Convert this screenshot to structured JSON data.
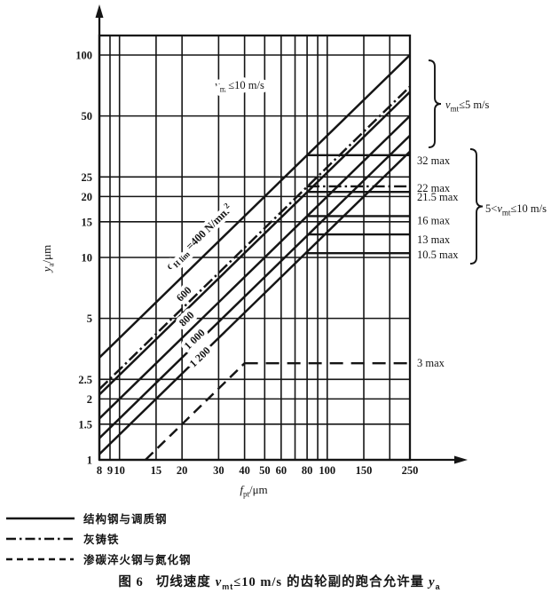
{
  "figure": {
    "caption": {
      "fig_no": "图 6",
      "before": "切线速度 ",
      "var": "v",
      "var_sub": "mt",
      "cond": "≤10 m/s",
      "after": " 的齿轮副的跑合允许量 ",
      "y_var": "y",
      "y_sub": "a"
    }
  },
  "legend": {
    "items": [
      {
        "name": "structural-and-quenched-tempered-steel",
        "style": "solid",
        "label": "结构钢与调质钢"
      },
      {
        "name": "grey-cast-iron",
        "style": "dashdot",
        "label": "灰铸铁"
      },
      {
        "name": "carburized-hardened-and-nitrided-steel",
        "style": "dashed",
        "label": "渗碳淬火钢与氮化钢"
      }
    ]
  },
  "chart_data": {
    "type": "line",
    "title": "切线速度 vmt≤10 m/s 的齿轮副的跑合允许量 ya",
    "x_scale": "log",
    "y_scale": "log",
    "xlim": [
      8,
      250
    ],
    "ylim": [
      1,
      125
    ],
    "xlabel_parts": [
      {
        "t": "f",
        "i": true
      },
      {
        "t": "pt",
        "sub": true
      },
      {
        "t": "/μm"
      }
    ],
    "ylabel_parts": [
      {
        "t": "y",
        "i": true
      },
      {
        "t": "a",
        "sub": true
      },
      {
        "t": "/μm"
      }
    ],
    "x_gridlines": [
      8,
      9,
      10,
      15,
      20,
      30,
      40,
      50,
      60,
      70,
      80,
      90,
      100,
      150,
      200,
      250
    ],
    "x_tick_labels": [
      "8",
      "9",
      "10",
      "15",
      "20",
      "30",
      "40",
      "50",
      "60",
      "80",
      "100",
      "150",
      "250"
    ],
    "x_tick_values": [
      8,
      9,
      10,
      15,
      20,
      30,
      40,
      50,
      60,
      80,
      100,
      150,
      250
    ],
    "y_gridlines": [
      1,
      1.5,
      2,
      2.5,
      5,
      10,
      15,
      20,
      25,
      50,
      100
    ],
    "y_tick_labels": [
      "1",
      "1.5",
      "2",
      "2.5",
      "5",
      "10",
      "15",
      "20",
      "25",
      "50",
      "100"
    ],
    "y_tick_values": [
      1,
      1.5,
      2,
      2.5,
      5,
      10,
      15,
      20,
      25,
      50,
      100
    ],
    "ink": "#151515",
    "series": [
      {
        "name": "sigma-hlim-400",
        "style": "solid",
        "k": 0.4,
        "x_from": 8,
        "x_to": 250,
        "y_nudge": 0
      },
      {
        "name": "grey-cast-iron",
        "style": "dashdot",
        "k": 0.275,
        "x_from": 8,
        "x_to": 250,
        "y_nudge": -1.5
      },
      {
        "name": "sigma-hlim-600",
        "style": "solid",
        "k": 0.266667,
        "x_from": 8,
        "x_to": 250,
        "y_nudge": 1.5
      },
      {
        "name": "sigma-hlim-800",
        "style": "solid",
        "k": 0.2,
        "x_from": 8,
        "x_to": 250,
        "y_nudge": 0
      },
      {
        "name": "sigma-hlim-1000",
        "style": "solid",
        "k": 0.16,
        "x_from": 8,
        "x_to": 250,
        "y_nudge": 0
      },
      {
        "name": "sigma-hlim-1200",
        "style": "solid",
        "k": 0.133333,
        "x_from": 8,
        "x_to": 250,
        "y_nudge": 0
      },
      {
        "name": "carburized-nitrided",
        "style": "dashed",
        "k": 0.075,
        "x_from": 13.333,
        "x_to": 40,
        "y_nudge": 0
      }
    ],
    "plateaus": [
      {
        "name": "cap-32",
        "y": 32,
        "x_from": 80,
        "style": "solid",
        "label": "32 max",
        "label_dy": 6
      },
      {
        "name": "cap-22",
        "y": 22,
        "x_from": 80,
        "style": "dashdot",
        "label": "22 max",
        "label_dy": 0,
        "y_nudge": -2
      },
      {
        "name": "cap-21.5",
        "y": 21.5,
        "x_from": 80.6,
        "style": "solid",
        "label": "21.5 max",
        "label_dy": 8,
        "y_nudge": 2
      },
      {
        "name": "cap-16",
        "y": 16,
        "x_from": 80,
        "style": "solid",
        "label": "16 max",
        "label_dy": 5
      },
      {
        "name": "cap-13",
        "y": 13,
        "x_from": 81.3,
        "style": "solid",
        "label": "13 max",
        "label_dy": 6
      },
      {
        "name": "cap-10.5",
        "y": 10.5,
        "x_from": 78.8,
        "style": "solid",
        "label": "10.5 max",
        "label_dy": 2
      },
      {
        "name": "cap-3",
        "y": 3,
        "x_from": 40,
        "style": "dashed",
        "label": "3 max",
        "label_dy": 0
      }
    ],
    "line_labels": [
      {
        "name": "label-sigma-400",
        "parts": [
          {
            "t": "σ",
            "i": true
          },
          {
            "t": "H lim",
            "sub": true
          },
          {
            "t": " =400 N/mm"
          },
          {
            "t": "2",
            "sup": true
          }
        ],
        "x": 227,
        "y": 270,
        "rotate": -44,
        "size": 12.5
      },
      {
        "name": "label-600",
        "parts": [
          {
            "t": "600"
          }
        ],
        "x": 210,
        "y": 334,
        "rotate": -44,
        "size": 12
      },
      {
        "name": "label-800",
        "parts": [
          {
            "t": "800"
          }
        ],
        "x": 213,
        "y": 362,
        "rotate": -44,
        "size": 12
      },
      {
        "name": "label-1000",
        "parts": [
          {
            "t": "1 000"
          }
        ],
        "x": 222,
        "y": 385,
        "rotate": -44,
        "size": 12
      },
      {
        "name": "label-1200",
        "parts": [
          {
            "t": "1 200"
          }
        ],
        "x": 228,
        "y": 405,
        "rotate": -44,
        "size": 12
      }
    ],
    "annotations": [
      {
        "name": "vmt-le-10-label",
        "parts": [
          {
            "t": "v",
            "i": true
          },
          {
            "t": "mt",
            "sub": true
          },
          {
            "t": "≤10 m/s"
          }
        ],
        "x": 270,
        "y": 100,
        "anchor": "middle",
        "halo": true
      },
      {
        "name": "vmt-le-5-label",
        "parts": [
          {
            "t": "v",
            "i": true
          },
          {
            "t": "mt",
            "sub": true
          },
          {
            "t": "≤5 m/s"
          }
        ],
        "x": 502,
        "y": 122,
        "anchor": "start"
      },
      {
        "name": "5-lt-vmt-le-10-label",
        "parts": [
          {
            "t": "5<"
          },
          {
            "t": "v",
            "i": true
          },
          {
            "t": "mt",
            "sub": true
          },
          {
            "t": "≤10 m/s"
          }
        ],
        "x": 547,
        "y": 239,
        "anchor": "start"
      }
    ],
    "braces": [
      {
        "name": "brace-vmt-le-5",
        "x": 483,
        "y1": 68,
        "y2": 166
      },
      {
        "name": "brace-5-lt-vmt-le-10",
        "x": 530,
        "y1": 168,
        "y2": 297
      }
    ]
  }
}
